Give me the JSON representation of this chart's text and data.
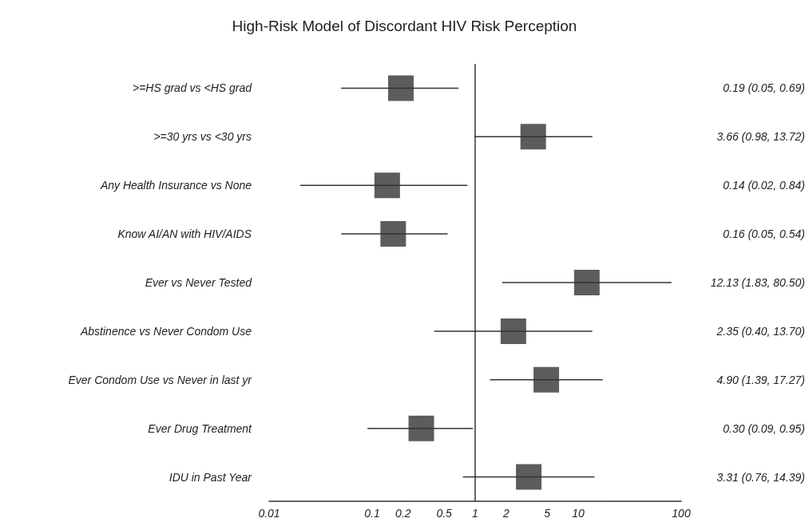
{
  "chart_data": {
    "type": "scatter",
    "title": "High-Risk Model of Discordant HIV Risk Perception",
    "orientation": "horizontal",
    "log": "x",
    "marker": "square",
    "grid": false,
    "categories": [
      ">=HS grad vs <HS grad",
      ">=30 yrs vs <30 yrs",
      "Any Health Insurance vs None",
      "Know AI/AN with HIV/AIDS",
      "Ever vs Never Tested",
      "Abstinence vs Never Condom Use",
      "Ever Condom Use vs Never in last yr",
      "Ever Drug Treatment",
      "IDU in Past Year"
    ],
    "series": [
      {
        "color": "#333333",
        "values": [
          0.19,
          3.66,
          0.14,
          0.16,
          12.13,
          2.35,
          4.9,
          0.3,
          3.31
        ],
        "errors": [
          [
            0.05,
            0.69
          ],
          [
            0.98,
            13.72
          ],
          [
            0.02,
            0.84
          ],
          [
            0.05,
            0.54
          ],
          [
            1.83,
            80.5
          ],
          [
            0.4,
            13.7
          ],
          [
            1.39,
            17.27
          ],
          [
            0.09,
            0.95
          ],
          [
            0.76,
            14.39
          ]
        ],
        "value_labels": [
          "0.19 (0.05, 0.69)",
          "3.66 (0.98, 13.72)",
          "0.14 (0.02, 0.84)",
          "0.16 (0.05, 0.54)",
          "12.13 (1.83, 80.50)",
          "2.35 (0.40, 13.70)",
          "4.90 (1.39, 17.27)",
          "0.30 (0.09, 0.95)",
          "3.31 (0.76, 14.39)"
        ]
      }
    ],
    "xlim": [
      0.01,
      100
    ],
    "xticks": [
      0.01,
      0.1,
      0.2,
      0.5,
      1,
      2,
      5,
      10,
      100
    ],
    "ref_lines": [
      {
        "axis": "x",
        "value": 1,
        "color": "#333333"
      }
    ]
  }
}
